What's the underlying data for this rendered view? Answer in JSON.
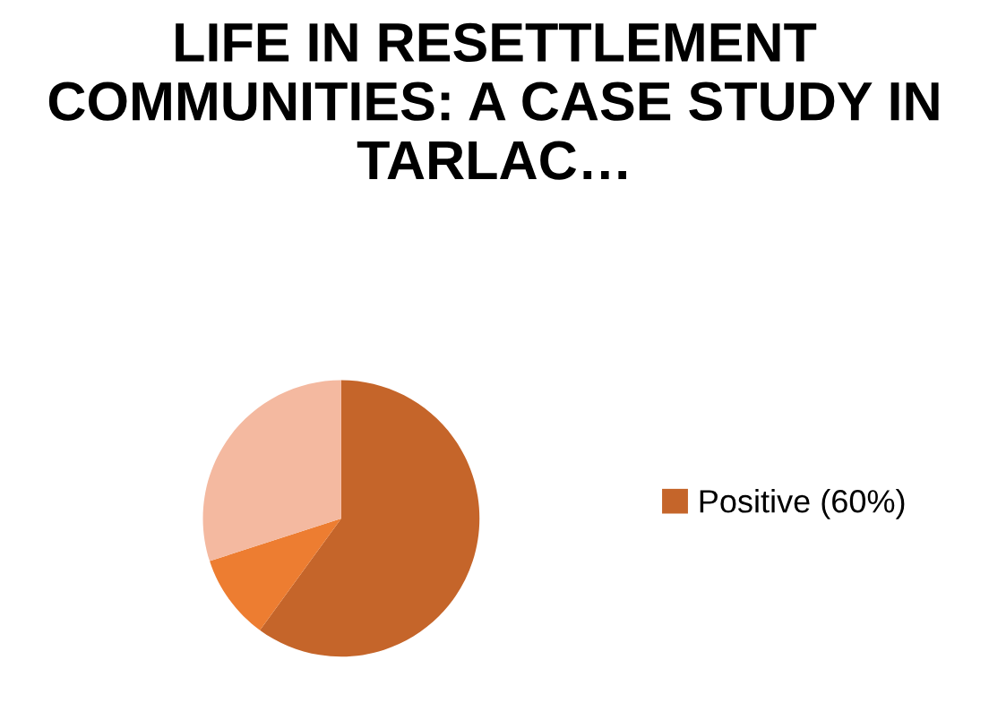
{
  "chart_data": {
    "type": "pie",
    "title": "LIFE IN RESETTLEMENT COMMUNITIES: A CASE STUDY IN TARLAC…",
    "categories": [
      "Positive (60%)",
      null,
      null
    ],
    "values": [
      60,
      10,
      30
    ],
    "colors": [
      "#c5652a",
      "#ed7d31",
      "#f4b9a0"
    ],
    "legend": "right"
  }
}
